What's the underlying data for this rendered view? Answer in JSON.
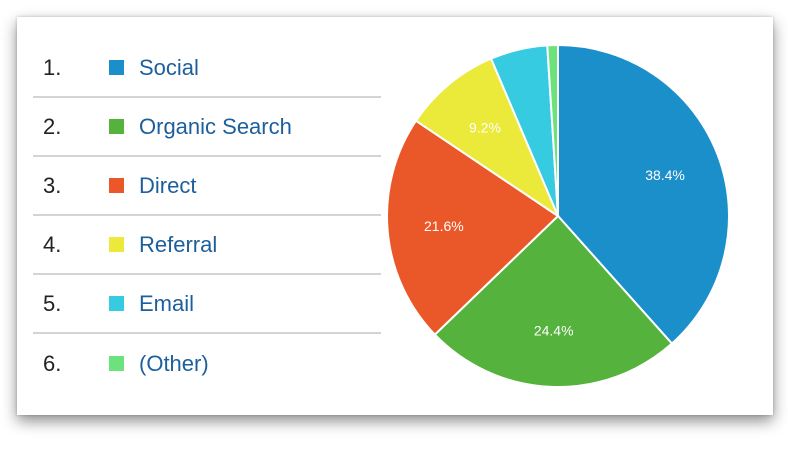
{
  "chart_data": {
    "type": "pie",
    "categories": [
      "Social",
      "Organic Search",
      "Direct",
      "Referral",
      "Email",
      "(Other)"
    ],
    "values": [
      38.4,
      24.4,
      21.6,
      9.2,
      5.4,
      1.0
    ],
    "labels": [
      "38.4%",
      "24.4%",
      "21.6%",
      "9.2%",
      "",
      ""
    ],
    "colors": [
      "#1a8fc9",
      "#55b23c",
      "#ea582a",
      "#ebe93a",
      "#36cbe1",
      "#6ce27c"
    ],
    "legend_placement": "left",
    "legend_numbers": [
      "1.",
      "2.",
      "3.",
      "4.",
      "5.",
      "6."
    ]
  }
}
